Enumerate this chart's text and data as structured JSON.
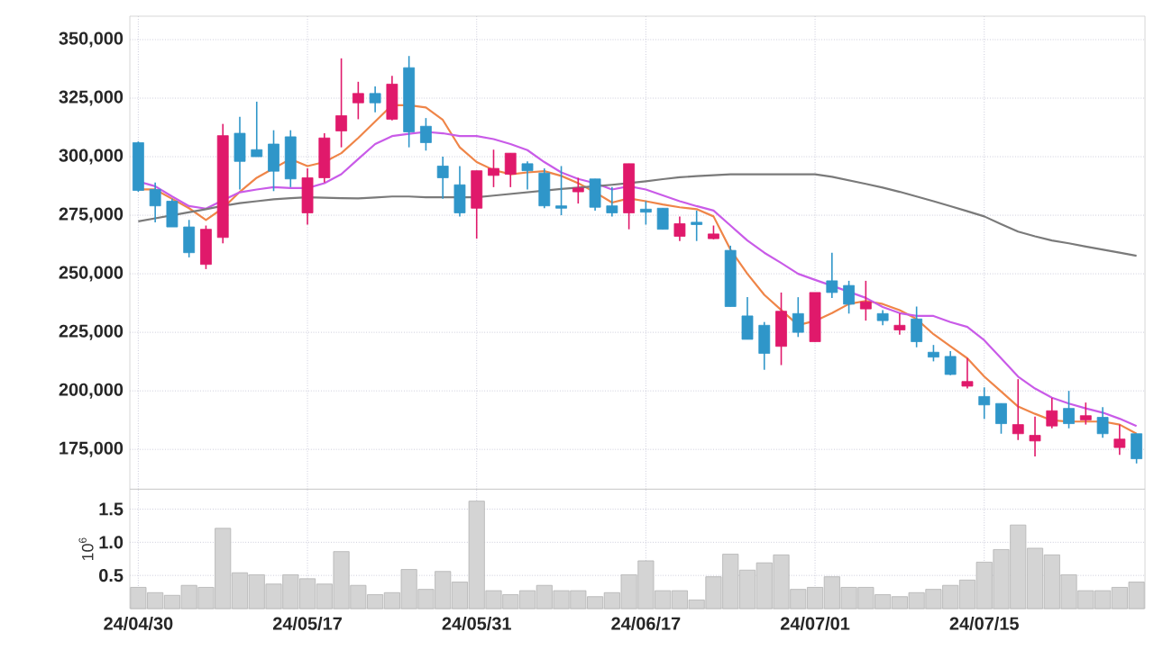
{
  "chart_data": [
    {
      "type": "candlestick",
      "tick_labels": "y",
      "grid": true,
      "categories": [
        null,
        null,
        null,
        null,
        null,
        null,
        null,
        null,
        null,
        null,
        null,
        null,
        null,
        null,
        null,
        null,
        null,
        null,
        null,
        null,
        null,
        null,
        null,
        null,
        null,
        null,
        null,
        null,
        null,
        null,
        null,
        null,
        null,
        null,
        null,
        null,
        null,
        null,
        null,
        null,
        null,
        null,
        null,
        null,
        null,
        null,
        null,
        null,
        null,
        null,
        null,
        null,
        null,
        null,
        null,
        null,
        null,
        null,
        null,
        null
      ],
      "ohlc": [
        [
          306000,
          306500,
          285000,
          285600
        ],
        [
          286000,
          289000,
          272000,
          279000
        ],
        [
          281000,
          282000,
          270000,
          270000
        ],
        [
          270000,
          273000,
          257000,
          259000
        ],
        [
          254000,
          270600,
          252000,
          269000
        ],
        [
          265500,
          314000,
          263000,
          309000
        ],
        [
          310000,
          317000,
          286000,
          298000
        ],
        [
          303000,
          323500,
          300000,
          300000
        ],
        [
          305400,
          311300,
          285300,
          293800
        ],
        [
          308500,
          311300,
          287000,
          290500
        ],
        [
          276000,
          295000,
          271000,
          291000
        ],
        [
          291000,
          310000,
          289000,
          308000
        ],
        [
          311000,
          342000,
          304000,
          317500
        ],
        [
          323000,
          332000,
          316000,
          327000
        ],
        [
          327000,
          330000,
          319000,
          323000
        ],
        [
          316000,
          334500,
          315500,
          331000
        ],
        [
          338000,
          343000,
          304000,
          310600
        ],
        [
          313000,
          316500,
          302600,
          306000
        ],
        [
          296000,
          300000,
          282000,
          291000
        ],
        [
          288000,
          296000,
          274500,
          276000
        ],
        [
          278000,
          294000,
          265000,
          294000
        ],
        [
          292000,
          303000,
          287000,
          295000
        ],
        [
          292500,
          301500,
          287000,
          301500
        ],
        [
          297000,
          298000,
          286000,
          294000
        ],
        [
          293000,
          295000,
          278000,
          279000
        ],
        [
          279000,
          296000,
          275000,
          278000
        ],
        [
          285000,
          291000,
          280000,
          286600
        ],
        [
          290500,
          290500,
          277000,
          278400
        ],
        [
          279000,
          287000,
          274500,
          276000
        ],
        [
          276000,
          297000,
          269000,
          297000
        ],
        [
          277600,
          281000,
          271000,
          276300
        ],
        [
          278000,
          278000,
          269000,
          269000
        ],
        [
          266000,
          274500,
          264000,
          271400
        ],
        [
          272000,
          277000,
          264000,
          271000
        ],
        [
          265000,
          270600,
          264700,
          267000
        ],
        [
          260000,
          262000,
          236000,
          236000
        ],
        [
          232000,
          240000,
          222000,
          222000
        ],
        [
          228000,
          229400,
          209000,
          216000
        ],
        [
          219000,
          242000,
          211000,
          234000
        ],
        [
          233000,
          240000,
          223000,
          225000
        ],
        [
          221000,
          242000,
          221000,
          242000
        ],
        [
          247000,
          259000,
          239700,
          242000
        ],
        [
          245000,
          247000,
          233000,
          237000
        ],
        [
          235000,
          247000,
          230000,
          238000
        ],
        [
          233000,
          234500,
          228000,
          230000
        ],
        [
          226000,
          233000,
          224000,
          228000
        ],
        [
          230700,
          236000,
          218600,
          221000
        ],
        [
          216500,
          219600,
          212600,
          214400
        ],
        [
          214700,
          217000,
          206700,
          207000
        ],
        [
          202000,
          214000,
          201000,
          204000
        ],
        [
          197600,
          201500,
          188000,
          194000
        ],
        [
          194600,
          194600,
          181700,
          186000
        ],
        [
          181700,
          205000,
          179000,
          185600
        ],
        [
          178600,
          189000,
          172000,
          181000
        ],
        [
          185000,
          197000,
          184000,
          191500
        ],
        [
          192500,
          200000,
          184000,
          186000
        ],
        [
          187600,
          195000,
          185600,
          189400
        ],
        [
          188700,
          193000,
          180000,
          181700
        ],
        [
          175800,
          185600,
          172700,
          179400
        ],
        [
          181700,
          181700,
          169000,
          171000
        ]
      ],
      "colors": [
        "#2f96c9",
        "#2f96c9",
        "#2f96c9",
        "#2f96c9",
        "#e0196b",
        "#e0196b",
        "#2f96c9",
        "#2f96c9",
        "#2f96c9",
        "#2f96c9",
        "#e0196b",
        "#e0196b",
        "#e0196b",
        "#e0196b",
        "#2f96c9",
        "#e0196b",
        "#2f96c9",
        "#2f96c9",
        "#2f96c9",
        "#2f96c9",
        "#e0196b",
        "#e0196b",
        "#e0196b",
        "#2f96c9",
        "#2f96c9",
        "#2f96c9",
        "#e0196b",
        "#2f96c9",
        "#2f96c9",
        "#e0196b",
        "#2f96c9",
        "#2f96c9",
        "#e0196b",
        "#2f96c9",
        "#e0196b",
        "#2f96c9",
        "#2f96c9",
        "#2f96c9",
        "#e0196b",
        "#2f96c9",
        "#e0196b",
        "#2f96c9",
        "#2f96c9",
        "#e0196b",
        "#2f96c9",
        "#e0196b",
        "#2f96c9",
        "#2f96c9",
        "#2f96c9",
        "#e0196b",
        "#2f96c9",
        "#2f96c9",
        "#e0196b",
        "#e0196b",
        "#e0196b",
        "#2f96c9",
        "#e0196b",
        "#2f96c9",
        "#e0196b",
        "#2f96c9"
      ],
      "series": [
        {
          "type": "line",
          "color": "#ef8548",
          "values": [
            286000,
            286000,
            282000,
            278000,
            273000,
            278000,
            285000,
            291000,
            295000,
            299000,
            296000,
            297700,
            301500,
            308000,
            315000,
            322000,
            322000,
            321000,
            315700,
            304000,
            297700,
            294300,
            292500,
            293300,
            293800,
            291800,
            288700,
            284800,
            280400,
            282200,
            281000,
            279600,
            278400,
            277600,
            274500,
            260300,
            250000,
            241000,
            234500,
            228100,
            229900,
            233200,
            237100,
            238400,
            237100,
            234500,
            230700,
            224200,
            219000,
            213900,
            206100,
            199700,
            193300,
            190200,
            187400,
            186900,
            186900,
            186900,
            185600,
            181700
          ]
        },
        {
          "type": "line",
          "color": "#c95be8",
          "values": [
            289400,
            287400,
            283000,
            278900,
            277800,
            281400,
            284800,
            286000,
            287000,
            286600,
            286600,
            288700,
            292500,
            299000,
            305400,
            308800,
            309800,
            310600,
            310000,
            308800,
            308800,
            307500,
            305400,
            302800,
            297700,
            293300,
            290500,
            288700,
            286000,
            287400,
            286000,
            283500,
            281000,
            278900,
            277000,
            270600,
            264200,
            259000,
            254600,
            250000,
            247400,
            244900,
            242300,
            239700,
            235800,
            233200,
            232000,
            232000,
            229400,
            227300,
            221600,
            213900,
            206100,
            201000,
            197100,
            194600,
            192500,
            190700,
            188100,
            185000
          ]
        },
        {
          "type": "line",
          "color": "#7a7a7a",
          "values": [
            272400,
            273700,
            275000,
            276300,
            277600,
            279000,
            280200,
            281000,
            281800,
            282300,
            282700,
            282500,
            282300,
            282200,
            282600,
            283000,
            283000,
            282700,
            282700,
            282700,
            282700,
            283400,
            284100,
            284800,
            285500,
            286200,
            286800,
            287400,
            288000,
            288700,
            289500,
            290400,
            291200,
            291700,
            292100,
            292500,
            292500,
            292500,
            292500,
            292500,
            292500,
            291400,
            289900,
            288400,
            286800,
            285000,
            283000,
            281000,
            278900,
            276700,
            274500,
            271200,
            268000,
            266000,
            264200,
            263000,
            261600,
            260300,
            259000,
            257700
          ]
        }
      ],
      "ylim": [
        158000,
        360000
      ],
      "yticks": [
        {
          "value": 175000,
          "label": "175,000"
        },
        {
          "value": 200000,
          "label": "200,000"
        },
        {
          "value": 225000,
          "label": "225,000"
        },
        {
          "value": 250000,
          "label": "250,000"
        },
        {
          "value": 275000,
          "label": "275,000"
        },
        {
          "value": 300000,
          "label": "300,000"
        },
        {
          "value": 325000,
          "label": "325,000"
        },
        {
          "value": 350000,
          "label": "350,000"
        }
      ]
    },
    {
      "type": "bar",
      "grid": true,
      "ylabel": "10$^{6}$",
      "color": "#d4d4d4",
      "categories": [
        "24/04/30",
        null,
        null,
        null,
        null,
        null,
        null,
        null,
        null,
        null,
        "24/05/17",
        null,
        null,
        null,
        null,
        null,
        null,
        null,
        null,
        null,
        "24/05/31",
        null,
        null,
        null,
        null,
        null,
        null,
        null,
        null,
        null,
        "24/06/17",
        null,
        null,
        null,
        null,
        null,
        null,
        null,
        null,
        null,
        "24/07/01",
        null,
        null,
        null,
        null,
        null,
        null,
        null,
        null,
        null,
        "24/07/15",
        null,
        null,
        null,
        null,
        null,
        null,
        null,
        null,
        null
      ],
      "values": [
        0.32,
        0.24,
        0.2,
        0.35,
        0.32,
        1.21,
        0.54,
        0.51,
        0.37,
        0.51,
        0.45,
        0.37,
        0.86,
        0.35,
        0.21,
        0.24,
        0.59,
        0.29,
        0.56,
        0.4,
        1.62,
        0.27,
        0.21,
        0.27,
        0.35,
        0.27,
        0.27,
        0.18,
        0.24,
        0.51,
        0.72,
        0.27,
        0.27,
        0.13,
        0.48,
        0.82,
        0.58,
        0.69,
        0.81,
        0.29,
        0.32,
        0.48,
        0.32,
        0.32,
        0.21,
        0.18,
        0.24,
        0.29,
        0.35,
        0.43,
        0.7,
        0.89,
        1.26,
        0.91,
        0.81,
        0.51,
        0.27,
        0.27,
        0.32,
        0.4
      ],
      "ylim": [
        0,
        1.8
      ],
      "yticks": [
        {
          "value": 0.5,
          "label": "0.5"
        },
        {
          "value": 1,
          "label": "1.0"
        },
        {
          "value": 1.5,
          "label": "1.5"
        }
      ]
    }
  ]
}
